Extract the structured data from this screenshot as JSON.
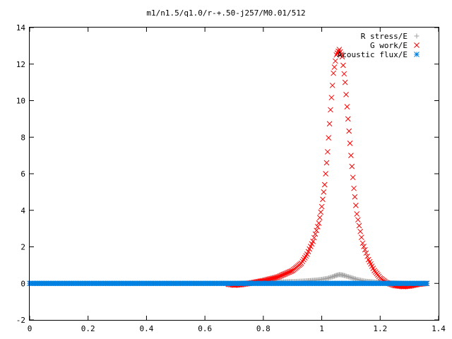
{
  "chart_data": {
    "type": "scatter",
    "title": "m1/n1.5/q1.0/r-+.50-j257/M0.01/512",
    "xlabel": "",
    "ylabel": "",
    "xlim": [
      0,
      1.4
    ],
    "ylim": [
      -2,
      14
    ],
    "x_ticks": [
      "0",
      "0.2",
      "0.4",
      "0.6",
      "0.8",
      "1",
      "1.2",
      "1.4"
    ],
    "y_ticks": [
      "-2",
      "0",
      "2",
      "4",
      "6",
      "8",
      "10",
      "12",
      "14"
    ],
    "grid": false,
    "legend_position": "top-right",
    "series": [
      {
        "name": "R stress/E",
        "marker": "plus",
        "color": "#a0a0a0",
        "x": [
          0.68,
          0.75,
          0.8,
          0.85,
          0.9,
          0.95,
          0.98,
          1.0,
          1.02,
          1.04,
          1.05,
          1.06,
          1.07,
          1.08,
          1.1,
          1.12,
          1.15,
          1.2,
          1.25,
          1.3,
          1.36
        ],
        "y": [
          0.0,
          0.02,
          0.05,
          0.08,
          0.1,
          0.14,
          0.18,
          0.22,
          0.28,
          0.38,
          0.44,
          0.48,
          0.46,
          0.42,
          0.32,
          0.22,
          0.12,
          0.05,
          0.02,
          0.0,
          0.0
        ]
      },
      {
        "name": "G work/E",
        "marker": "cross",
        "color": "#ff0000",
        "x": [
          0.68,
          0.7,
          0.72,
          0.75,
          0.8,
          0.85,
          0.9,
          0.93,
          0.95,
          0.97,
          0.99,
          1.0,
          1.01,
          1.02,
          1.03,
          1.04,
          1.05,
          1.06,
          1.07,
          1.08,
          1.09,
          1.1,
          1.11,
          1.12,
          1.14,
          1.16,
          1.18,
          1.2,
          1.22,
          1.25,
          1.28,
          1.3,
          1.33,
          1.36
        ],
        "y": [
          -0.05,
          -0.1,
          -0.08,
          0.0,
          0.15,
          0.35,
          0.7,
          1.1,
          1.6,
          2.3,
          3.3,
          4.2,
          5.4,
          7.2,
          9.5,
          11.5,
          12.5,
          12.8,
          12.4,
          11.0,
          9.0,
          7.0,
          5.2,
          3.8,
          2.2,
          1.3,
          0.7,
          0.3,
          0.05,
          -0.12,
          -0.18,
          -0.15,
          -0.05,
          0.0
        ]
      },
      {
        "name": "Acoustic flux/E",
        "marker": "star",
        "color": "#0080e0",
        "x_range": [
          0,
          1.36
        ],
        "y_constant": 0
      }
    ]
  }
}
